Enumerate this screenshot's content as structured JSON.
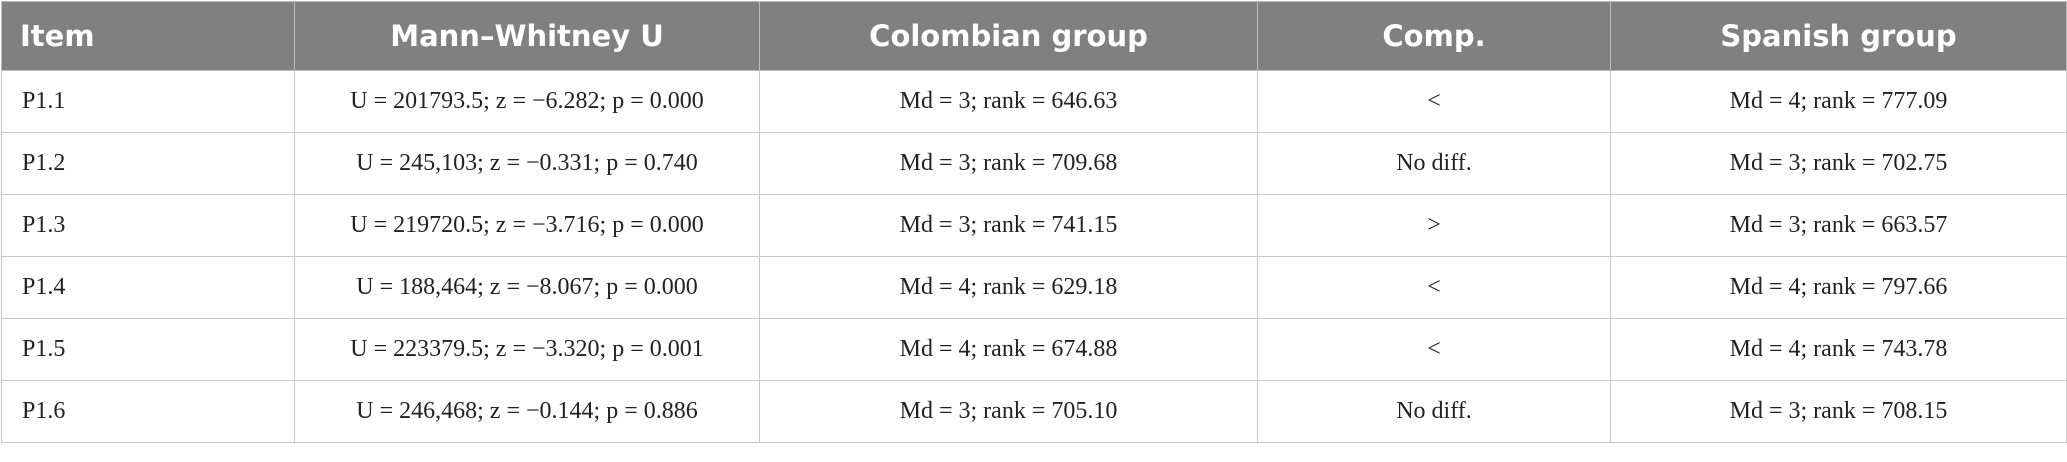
{
  "table": {
    "header": [
      "Item",
      "Mann–Whitney U",
      "Colombian group",
      "Comp.",
      "Spanish group"
    ],
    "rows": [
      [
        "P1.1",
        "U = 201793.5; z = −6.282; p = 0.000",
        "Md = 3; rank = 646.63",
        "<",
        "Md = 4; rank = 777.09"
      ],
      [
        "P1.2",
        "U = 245,103; z = −0.331; p = 0.740",
        "Md = 3; rank = 709.68",
        "No diff.",
        "Md = 3; rank = 702.75"
      ],
      [
        "P1.3",
        "U = 219720.5; z = −3.716; p = 0.000",
        "Md = 3; rank = 741.15",
        ">",
        "Md = 3; rank = 663.57"
      ],
      [
        "P1.4",
        "U = 188,464; z = −8.067; p = 0.000",
        "Md = 4; rank = 629.18",
        "<",
        "Md = 4; rank = 797.66"
      ],
      [
        "P1.5",
        "U = 223379.5; z = −3.320; p = 0.001",
        "Md = 4; rank = 674.88",
        "<",
        "Md = 4; rank = 743.78"
      ],
      [
        "P1.6",
        "U = 246,468; z = −0.144; p = 0.886",
        "Md = 3; rank = 705.10",
        "No diff.",
        "Md = 3; rank = 708.15"
      ]
    ]
  }
}
